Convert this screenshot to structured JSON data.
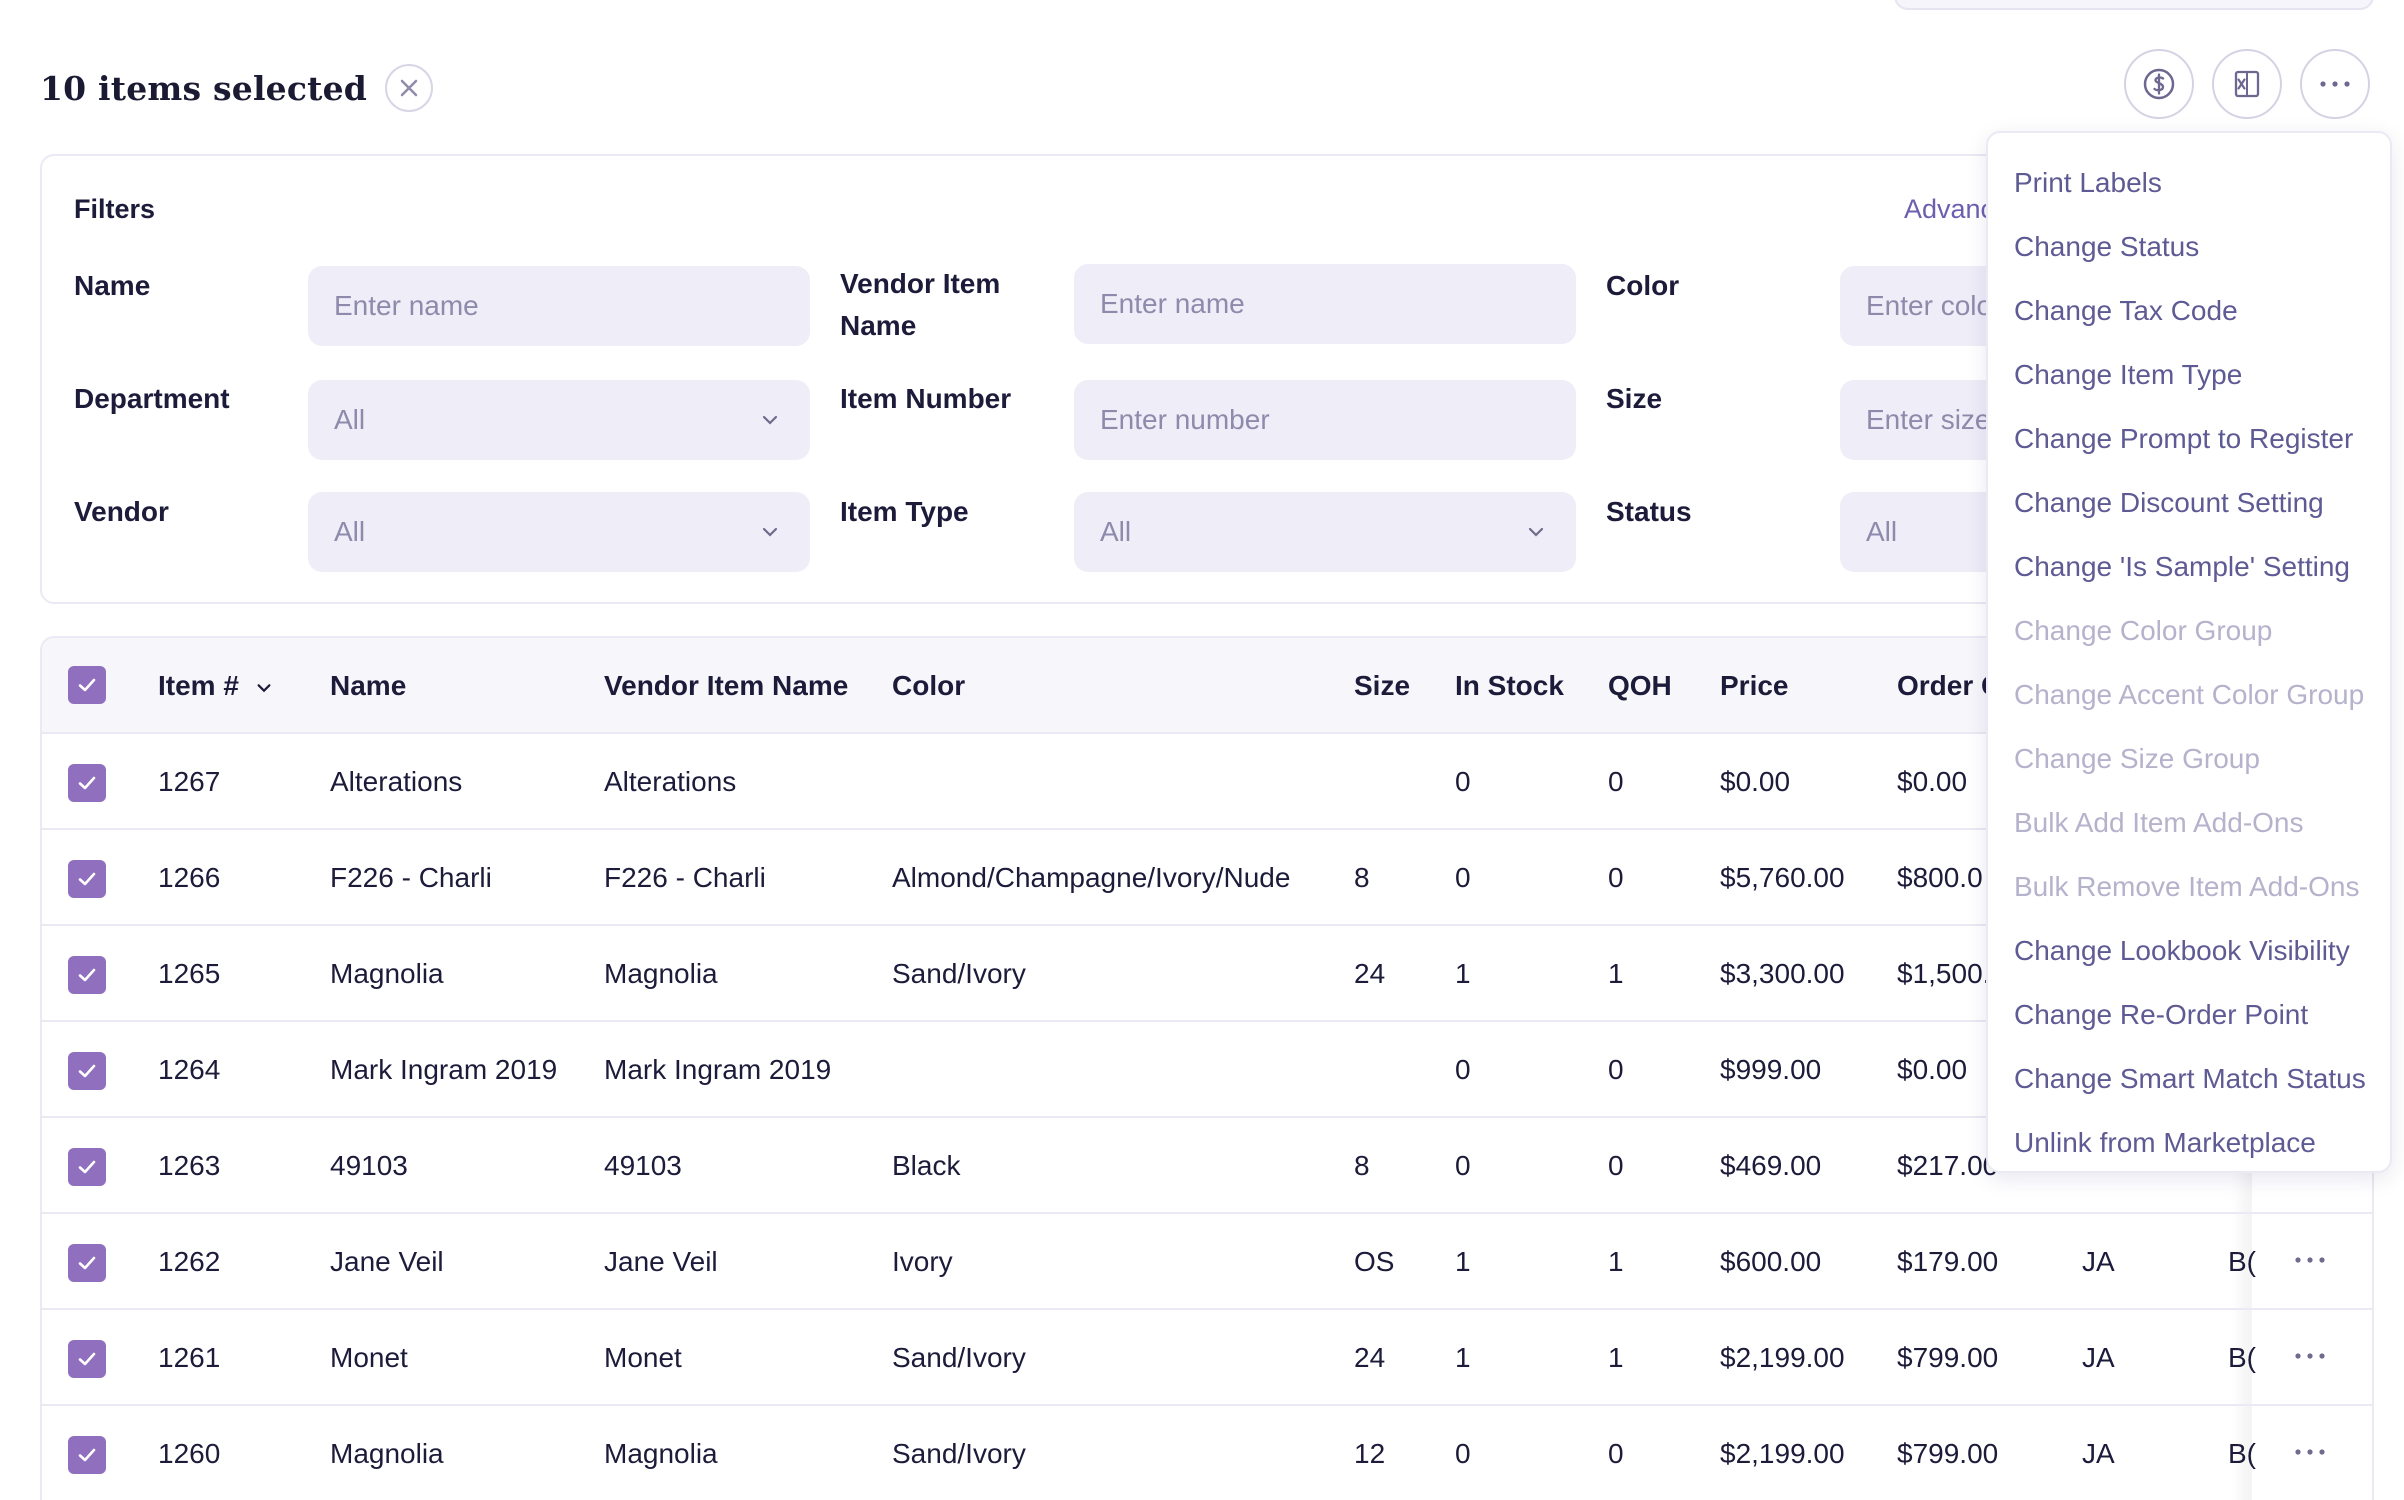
{
  "selection": {
    "count_label": "10 items selected"
  },
  "actions": [
    {
      "name": "price-action",
      "icon": "dollar-circle-icon"
    },
    {
      "name": "export-excel",
      "icon": "excel-icon"
    },
    {
      "name": "more-actions",
      "icon": "ellipsis-icon"
    }
  ],
  "filters": {
    "title": "Filters",
    "advanced_label": "Advanc",
    "fields": {
      "name": {
        "label": "Name",
        "placeholder": "Enter name"
      },
      "vendor_item_name": {
        "label": "Vendor Item Name",
        "placeholder": "Enter name"
      },
      "color": {
        "label": "Color",
        "placeholder": "Enter colo"
      },
      "department": {
        "label": "Department",
        "value": "All"
      },
      "item_number": {
        "label": "Item Number",
        "placeholder": "Enter number"
      },
      "size": {
        "label": "Size",
        "placeholder": "Enter size"
      },
      "vendor": {
        "label": "Vendor",
        "value": "All"
      },
      "item_type": {
        "label": "Item Type",
        "value": "All"
      },
      "status": {
        "label": "Status",
        "value": "All"
      }
    }
  },
  "table": {
    "columns": [
      "Item #",
      "Name",
      "Vendor Item Name",
      "Color",
      "Size",
      "In Stock",
      "QOH",
      "Price",
      "Order C"
    ],
    "rows": [
      {
        "item": "1267",
        "name": "Alterations",
        "vendor_name": "Alterations",
        "color": "",
        "size": "",
        "in_stock": "0",
        "qoh": "0",
        "price": "$0.00",
        "order": "$0.00",
        "c10": "",
        "c11": ""
      },
      {
        "item": "1266",
        "name": "F226 - Charli",
        "vendor_name": "F226 - Charli",
        "color": "Almond/Champagne/Ivory/Nude",
        "size": "8",
        "in_stock": "0",
        "qoh": "0",
        "price": "$5,760.00",
        "order": "$800.0",
        "c10": "",
        "c11": ""
      },
      {
        "item": "1265",
        "name": "Magnolia",
        "vendor_name": "Magnolia",
        "color": "Sand/Ivory",
        "size": "24",
        "in_stock": "1",
        "qoh": "1",
        "price": "$3,300.00",
        "order": "$1,500.",
        "c10": "",
        "c11": ""
      },
      {
        "item": "1264",
        "name": "Mark Ingram 2019",
        "vendor_name": "Mark Ingram 2019",
        "color": "",
        "size": "",
        "in_stock": "0",
        "qoh": "0",
        "price": "$999.00",
        "order": "$0.00",
        "c10": "",
        "c11": ""
      },
      {
        "item": "1263",
        "name": "49103",
        "vendor_name": "49103",
        "color": "Black",
        "size": "8",
        "in_stock": "0",
        "qoh": "0",
        "price": "$469.00",
        "order": "$217.00",
        "c10": "",
        "c11": ""
      },
      {
        "item": "1262",
        "name": "Jane Veil",
        "vendor_name": "Jane Veil",
        "color": "Ivory",
        "size": "OS",
        "in_stock": "1",
        "qoh": "1",
        "price": "$600.00",
        "order": "$179.00",
        "c10": "JA",
        "c11": "B("
      },
      {
        "item": "1261",
        "name": "Monet",
        "vendor_name": "Monet",
        "color": "Sand/Ivory",
        "size": "24",
        "in_stock": "1",
        "qoh": "1",
        "price": "$2,199.00",
        "order": "$799.00",
        "c10": "JA",
        "c11": "B("
      },
      {
        "item": "1260",
        "name": "Magnolia",
        "vendor_name": "Magnolia",
        "color": "Sand/Ivory",
        "size": "12",
        "in_stock": "0",
        "qoh": "0",
        "price": "$2,199.00",
        "order": "$799.00",
        "c10": "JA",
        "c11": "B("
      }
    ]
  },
  "menu": {
    "items": [
      {
        "label": "Print Labels",
        "enabled": true
      },
      {
        "label": "Change Status",
        "enabled": true
      },
      {
        "label": "Change Tax Code",
        "enabled": true
      },
      {
        "label": "Change Item Type",
        "enabled": true
      },
      {
        "label": "Change Prompt to Register",
        "enabled": true
      },
      {
        "label": "Change Discount Setting",
        "enabled": true
      },
      {
        "label": "Change 'Is Sample' Setting",
        "enabled": true
      },
      {
        "label": "Change Color Group",
        "enabled": false
      },
      {
        "label": "Change Accent Color Group",
        "enabled": false
      },
      {
        "label": "Change Size Group",
        "enabled": false
      },
      {
        "label": "Bulk Add Item Add-Ons",
        "enabled": false
      },
      {
        "label": "Bulk Remove Item Add-Ons",
        "enabled": false
      },
      {
        "label": "Change Lookbook Visibility",
        "enabled": true
      },
      {
        "label": "Change Re-Order Point",
        "enabled": true
      },
      {
        "label": "Change Smart Match Status",
        "enabled": true
      },
      {
        "label": "Unlink from Marketplace",
        "enabled": true
      }
    ]
  },
  "colors": {
    "accent": "#8f6fbe",
    "menu_text": "#5e5a94",
    "menu_disabled": "#b5b2cc"
  }
}
